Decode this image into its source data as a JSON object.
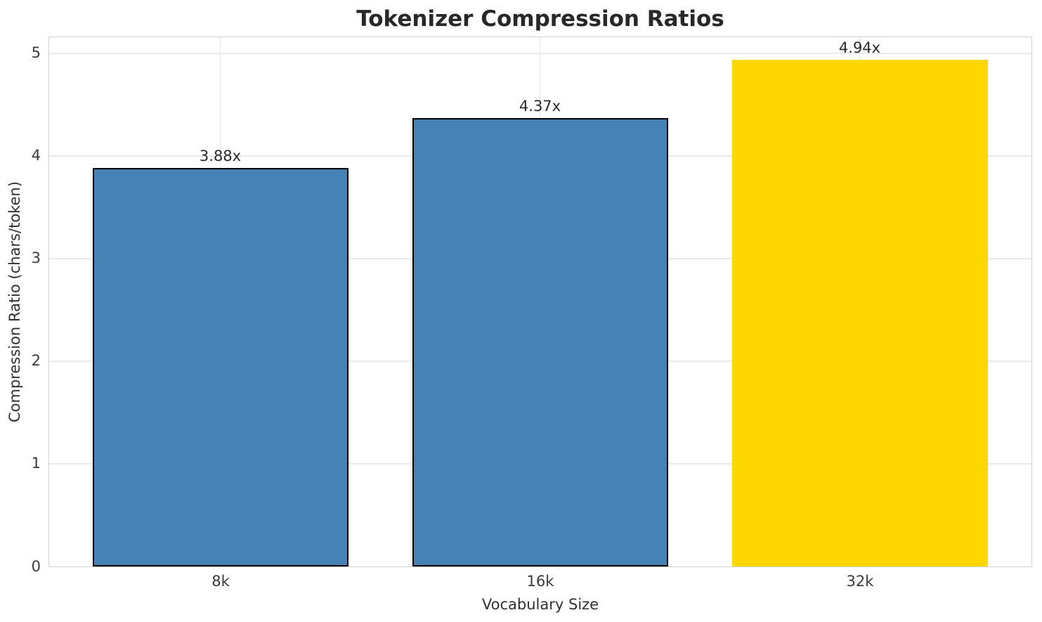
{
  "chart_data": {
    "type": "bar",
    "title": "Tokenizer Compression Ratios",
    "xlabel": "Vocabulary Size",
    "ylabel": "Compression Ratio (chars/token)",
    "categories": [
      "8k",
      "16k",
      "32k"
    ],
    "values": [
      3.88,
      4.37,
      4.94
    ],
    "value_labels": [
      "3.88x",
      "4.37x",
      "4.94x"
    ],
    "yticks": [
      "0",
      "1",
      "2",
      "3",
      "4",
      "5"
    ],
    "ylim": [
      0,
      5.15
    ],
    "grid": true,
    "legend": "none",
    "colors": {
      "bar_default": "#4682b4",
      "bar_highlight": "#ffd700",
      "bar_edge": "#000000",
      "grid_line": "#ebebeb",
      "spine": "#d2d2d2",
      "text": "#2b2b2b",
      "background": "#ffffff"
    },
    "bar_colors": [
      "#4682b4",
      "#4682b4",
      "#ffd700"
    ],
    "bar_edge_colors": [
      "#000000",
      "#000000",
      "none"
    ]
  }
}
